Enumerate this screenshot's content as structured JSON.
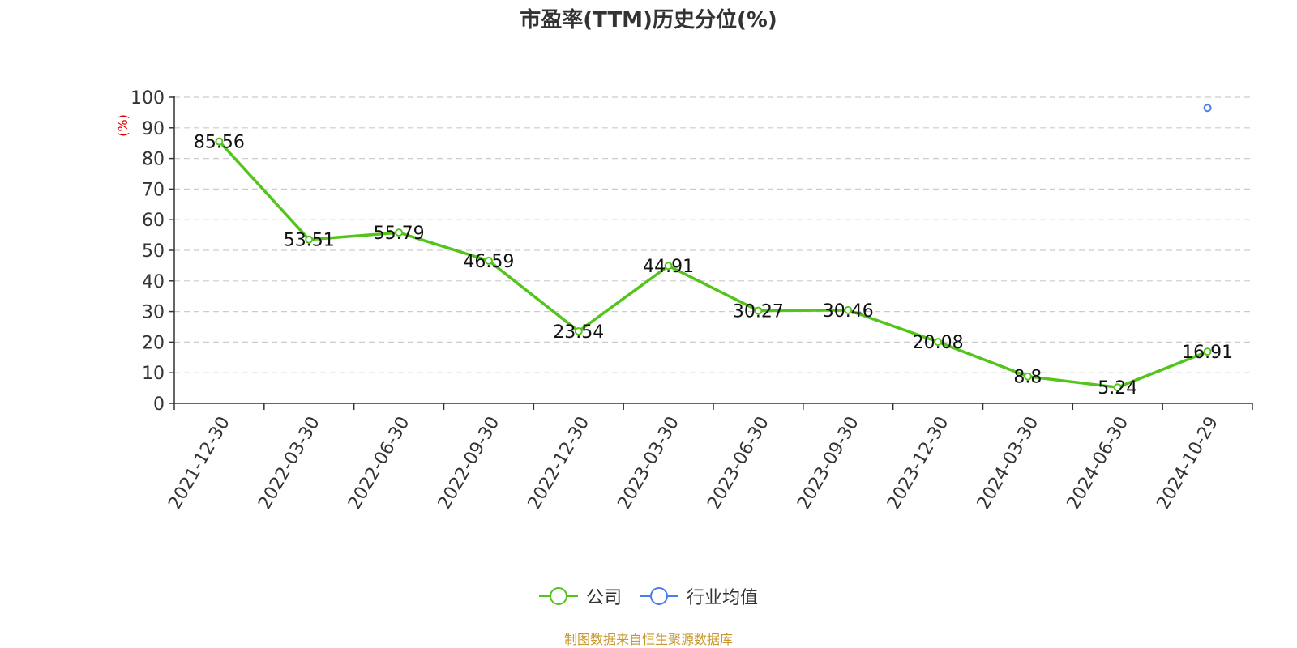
{
  "title": "市盈率(TTM)历史分位(%)",
  "source": "制图数据来自恒生聚源数据库",
  "colors": {
    "company": "#52c41a",
    "industry": "#4a7de8",
    "axis_unit": "#e00000"
  },
  "chart_data": {
    "type": "line",
    "title": "市盈率(TTM)历史分位(%)",
    "ylabel": "(%)",
    "ylim": [
      0,
      100
    ],
    "yticks": [
      0,
      10,
      20,
      30,
      40,
      50,
      60,
      70,
      80,
      90,
      100
    ],
    "grid": true,
    "legend_position": "bottom",
    "categories": [
      "2021-12-30",
      "2022-03-30",
      "2022-06-30",
      "2022-09-30",
      "2022-12-30",
      "2023-03-30",
      "2023-06-30",
      "2023-09-30",
      "2023-12-30",
      "2024-03-30",
      "2024-06-30",
      "2024-10-29"
    ],
    "series": [
      {
        "name": "公司",
        "values": [
          85.56,
          53.51,
          55.79,
          46.59,
          23.54,
          44.91,
          30.27,
          30.46,
          20.08,
          8.8,
          5.24,
          16.91
        ],
        "value_labels": [
          "85.56",
          "53.51",
          "55.79",
          "46.59",
          "23.54",
          "44.91",
          "30.27",
          "30.46",
          "20.08",
          "8.8",
          "5.24",
          "16.91"
        ]
      },
      {
        "name": "行业均值",
        "values": [
          null,
          null,
          null,
          null,
          null,
          null,
          null,
          null,
          null,
          null,
          null,
          96.5
        ]
      }
    ]
  }
}
